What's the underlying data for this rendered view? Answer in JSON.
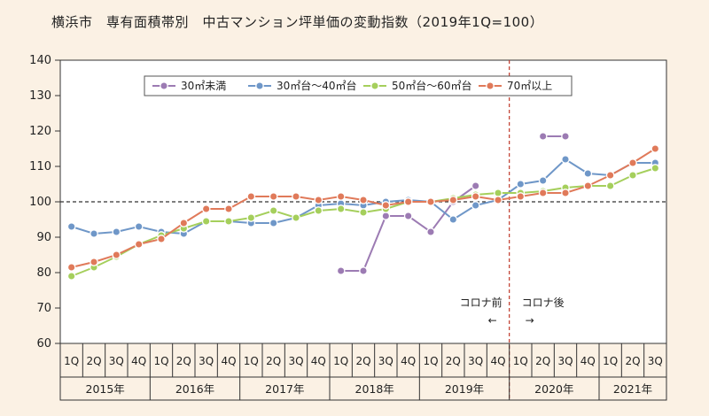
{
  "chart_data": {
    "type": "line",
    "title": "横浜市　専有面積帯別　中古マンション坪単価の変動指数（2019年1Q=100）",
    "x": [
      "1Q",
      "2Q",
      "3Q",
      "4Q",
      "1Q",
      "2Q",
      "3Q",
      "4Q",
      "1Q",
      "2Q",
      "3Q",
      "4Q",
      "1Q",
      "2Q",
      "3Q",
      "4Q",
      "1Q",
      "2Q",
      "3Q",
      "4Q",
      "1Q",
      "2Q",
      "3Q",
      "4Q",
      "1Q",
      "2Q",
      "3Q"
    ],
    "year_groups": [
      {
        "label": "2015年",
        "quarters": 4
      },
      {
        "label": "2016年",
        "quarters": 4
      },
      {
        "label": "2017年",
        "quarters": 4
      },
      {
        "label": "2018年",
        "quarters": 4
      },
      {
        "label": "2019年",
        "quarters": 4
      },
      {
        "label": "2020年",
        "quarters": 4
      },
      {
        "label": "2021年",
        "quarters": 3
      }
    ],
    "ylim": [
      60,
      140
    ],
    "yticks": [
      60,
      70,
      80,
      90,
      100,
      110,
      120,
      130,
      140
    ],
    "reference_line": 100,
    "series": [
      {
        "name": "30㎡未満",
        "color": "#9c7bb3",
        "values": [
          null,
          null,
          null,
          null,
          null,
          null,
          null,
          null,
          null,
          null,
          null,
          null,
          80.5,
          80.5,
          96,
          96,
          91.5,
          100,
          104.5,
          null,
          null,
          118.5,
          118.5,
          null,
          null,
          null,
          null
        ]
      },
      {
        "name": "30㎡台〜40㎡台",
        "color": "#6f97c8",
        "values": [
          93,
          91,
          91.5,
          93,
          91.5,
          91,
          94.5,
          94.5,
          94,
          94,
          95.5,
          99,
          99.5,
          99,
          100,
          100.5,
          100,
          95,
          99,
          100.5,
          105,
          106,
          112,
          108,
          107.5,
          111,
          111
        ]
      },
      {
        "name": "50㎡台〜60㎡台",
        "color": "#a5cf5c",
        "values": [
          79,
          81.5,
          84.5,
          88,
          90.5,
          92.5,
          94.5,
          94.5,
          95.5,
          97.5,
          95.5,
          97.5,
          98,
          97,
          98,
          100,
          100,
          101,
          102,
          102.5,
          102.5,
          103,
          104,
          104.5,
          104.5,
          107.5,
          109.5
        ]
      },
      {
        "name": "70㎡以上",
        "color": "#e07a5a",
        "values": [
          81.5,
          83,
          85,
          88,
          89.5,
          94,
          98,
          98,
          101.5,
          101.5,
          101.5,
          100.5,
          101.5,
          100.5,
          99,
          100,
          100,
          100.5,
          101.5,
          100.5,
          101.5,
          102.5,
          102.5,
          104.5,
          107.5,
          111,
          115
        ]
      }
    ],
    "annotations": {
      "divider_label_before": "コロナ前",
      "divider_label_after": "コロナ後",
      "arrow_left": "←",
      "arrow_right": "→"
    },
    "legend_position": "top"
  }
}
